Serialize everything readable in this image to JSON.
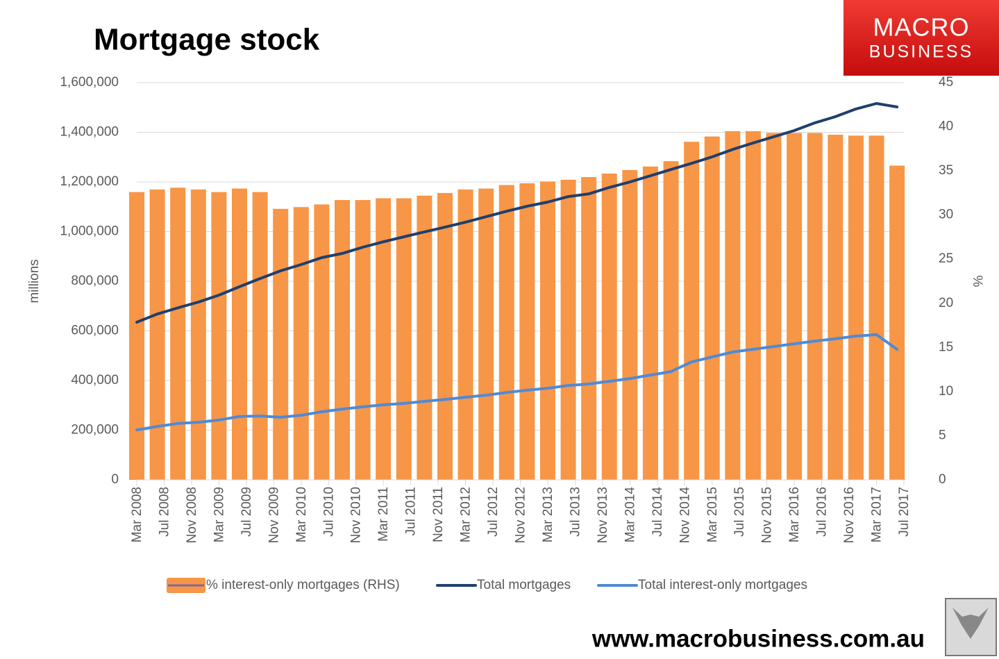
{
  "chart_data": {
    "type": "combo",
    "title": "Mortgage stock",
    "logo": {
      "line1": "MACRO",
      "line2": "BUSINESS"
    },
    "footer": "www.macrobusiness.com.au",
    "y_label": "millions",
    "y2_label": "%",
    "x": [
      "2008-03",
      "2008-06",
      "2008-09",
      "2008-12",
      "2009-03",
      "2009-06",
      "2009-09",
      "2009-12",
      "2010-03",
      "2010-06",
      "2010-09",
      "2010-12",
      "2011-03",
      "2011-06",
      "2011-09",
      "2011-12",
      "2012-03",
      "2012-06",
      "2012-09",
      "2012-12",
      "2013-03",
      "2013-06",
      "2013-09",
      "2013-12",
      "2014-03",
      "2014-06",
      "2014-09",
      "2014-12",
      "2015-03",
      "2015-06",
      "2015-09",
      "2015-12",
      "2016-03",
      "2016-06",
      "2016-09",
      "2016-12",
      "2017-03",
      "2017-06"
    ],
    "xlim": [
      "2008-03",
      "2017-07"
    ],
    "xticks": [
      {
        "value": "2008-03",
        "label": "Mar 2008"
      },
      {
        "value": "2008-07",
        "label": "Jul 2008"
      },
      {
        "value": "2008-11",
        "label": "Nov 2008"
      },
      {
        "value": "2009-03",
        "label": "Mar 2009"
      },
      {
        "value": "2009-07",
        "label": "Jul 2009"
      },
      {
        "value": "2009-11",
        "label": "Nov 2009"
      },
      {
        "value": "2010-03",
        "label": "Mar 2010"
      },
      {
        "value": "2010-07",
        "label": "Jul 2010"
      },
      {
        "value": "2010-11",
        "label": "Nov 2010"
      },
      {
        "value": "2011-03",
        "label": "Mar 2011"
      },
      {
        "value": "2011-07",
        "label": "Jul 2011"
      },
      {
        "value": "2011-11",
        "label": "Nov 2011"
      },
      {
        "value": "2012-03",
        "label": "Mar 2012"
      },
      {
        "value": "2012-07",
        "label": "Jul 2012"
      },
      {
        "value": "2012-11",
        "label": "Nov 2012"
      },
      {
        "value": "2013-03",
        "label": "Mar 2013"
      },
      {
        "value": "2013-07",
        "label": "Jul 2013"
      },
      {
        "value": "2013-11",
        "label": "Nov 2013"
      },
      {
        "value": "2014-03",
        "label": "Mar 2014"
      },
      {
        "value": "2014-07",
        "label": "Jul 2014"
      },
      {
        "value": "2014-11",
        "label": "Nov 2014"
      },
      {
        "value": "2015-03",
        "label": "Mar 2015"
      },
      {
        "value": "2015-07",
        "label": "Jul 2015"
      },
      {
        "value": "2015-11",
        "label": "Nov 2015"
      },
      {
        "value": "2016-03",
        "label": "Mar 2016"
      },
      {
        "value": "2016-07",
        "label": "Jul 2016"
      },
      {
        "value": "2016-11",
        "label": "Nov 2016"
      },
      {
        "value": "2017-03",
        "label": "Mar 2017"
      },
      {
        "value": "2017-07",
        "label": "Jul 2017"
      }
    ],
    "ylim": [
      0,
      1600000
    ],
    "yticks": [
      0,
      {
        "value": 200000,
        "label": "200,000"
      },
      {
        "value": 400000,
        "label": "400,000"
      },
      {
        "value": 600000,
        "label": "600,000"
      },
      {
        "value": 800000,
        "label": "800,000"
      },
      {
        "value": 1000000,
        "label": "1,000,000"
      },
      {
        "value": 1200000,
        "label": "1,200,000"
      },
      {
        "value": 1400000,
        "label": "1,400,000"
      },
      {
        "value": 1600000,
        "label": "1,600,000"
      }
    ],
    "y2lim": [
      0,
      45
    ],
    "y2ticks": [
      0,
      5,
      10,
      15,
      20,
      25,
      30,
      35,
      40,
      45
    ],
    "grid": true,
    "legend": "bottom",
    "series": [
      {
        "name": "% interest-only mortgages (RHS)",
        "type": "bar",
        "axis": "y2",
        "color": "#f79646",
        "legend_line_color": "#8064a2",
        "values": [
          32.6,
          32.9,
          33.1,
          32.9,
          32.6,
          33.0,
          32.6,
          30.7,
          30.9,
          31.2,
          31.7,
          31.7,
          31.9,
          31.9,
          32.2,
          32.5,
          32.9,
          33.0,
          33.4,
          33.6,
          33.8,
          34.0,
          34.3,
          34.7,
          35.1,
          35.5,
          36.1,
          38.3,
          38.9,
          39.5,
          39.5,
          39.3,
          39.3,
          39.3,
          39.1,
          39.0,
          39.0,
          35.6
        ]
      },
      {
        "name": "Total mortgages",
        "type": "line",
        "color": "#1f3f6e",
        "values": [
          635000,
          668000,
          693000,
          716000,
          744000,
          778000,
          811000,
          842000,
          867000,
          895000,
          912000,
          937000,
          959000,
          979000,
          999000,
          1018000,
          1038000,
          1060000,
          1082000,
          1102000,
          1119000,
          1141000,
          1152000,
          1178000,
          1200000,
          1225000,
          1250000,
          1275000,
          1301000,
          1331000,
          1357000,
          1382000,
          1407000,
          1438000,
          1463000,
          1494000,
          1516000,
          1502000
        ]
      },
      {
        "name": "Total interest-only mortgages",
        "type": "line",
        "color": "#4f8ad6",
        "values": [
          201000,
          215000,
          227000,
          232000,
          241000,
          255000,
          257000,
          252000,
          260000,
          274000,
          285000,
          294000,
          302000,
          308000,
          316000,
          324000,
          333000,
          341000,
          352000,
          361000,
          369000,
          380000,
          386000,
          397000,
          408000,
          422000,
          436000,
          475000,
          495000,
          515000,
          526000,
          537000,
          548000,
          559000,
          568000,
          579000,
          585000,
          526000
        ]
      }
    ]
  }
}
